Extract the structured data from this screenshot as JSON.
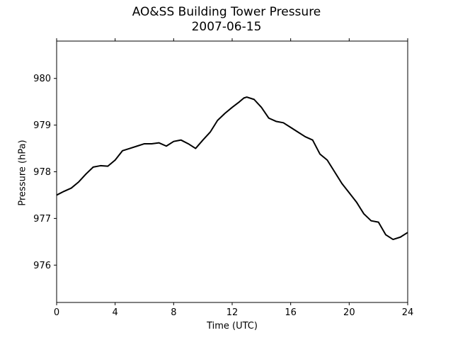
{
  "chart_data": {
    "type": "line",
    "title": "AO&SS Building Tower Pressure",
    "subtitle": "2007-06-15",
    "xlabel": "Time (UTC)",
    "ylabel": "Pressure (hPa)",
    "xlim": [
      0,
      24
    ],
    "ylim": [
      975.2,
      980.8
    ],
    "xticks": [
      0,
      4,
      8,
      12,
      16,
      20,
      24
    ],
    "yticks": [
      976,
      977,
      978,
      979,
      980
    ],
    "grid": false,
    "series": [
      {
        "color": "#000000",
        "x": [
          0,
          0.5,
          1.0,
          1.5,
          2.0,
          2.5,
          3.0,
          3.5,
          4.0,
          4.5,
          5.0,
          5.5,
          6.0,
          6.5,
          7.0,
          7.5,
          8.0,
          8.5,
          9.0,
          9.5,
          10.0,
          10.5,
          11.0,
          11.5,
          12.0,
          12.5,
          12.8,
          13.0,
          13.5,
          14.0,
          14.5,
          15.0,
          15.5,
          16.0,
          16.5,
          17.0,
          17.5,
          18.0,
          18.5,
          19.0,
          19.5,
          20.0,
          20.5,
          21.0,
          21.5,
          22.0,
          22.5,
          23.0,
          23.5,
          24.0
        ],
        "y": [
          977.5,
          977.58,
          977.65,
          977.78,
          977.95,
          978.1,
          978.13,
          978.12,
          978.25,
          978.45,
          978.5,
          978.55,
          978.6,
          978.6,
          978.62,
          978.55,
          978.65,
          978.68,
          978.6,
          978.5,
          978.68,
          978.85,
          979.1,
          979.25,
          979.38,
          979.5,
          979.58,
          979.6,
          979.55,
          979.38,
          979.15,
          979.08,
          979.05,
          978.95,
          978.85,
          978.75,
          978.68,
          978.38,
          978.25,
          978.0,
          977.75,
          977.55,
          977.35,
          977.1,
          976.95,
          976.92,
          976.65,
          976.55,
          976.6,
          976.7
        ]
      }
    ]
  }
}
